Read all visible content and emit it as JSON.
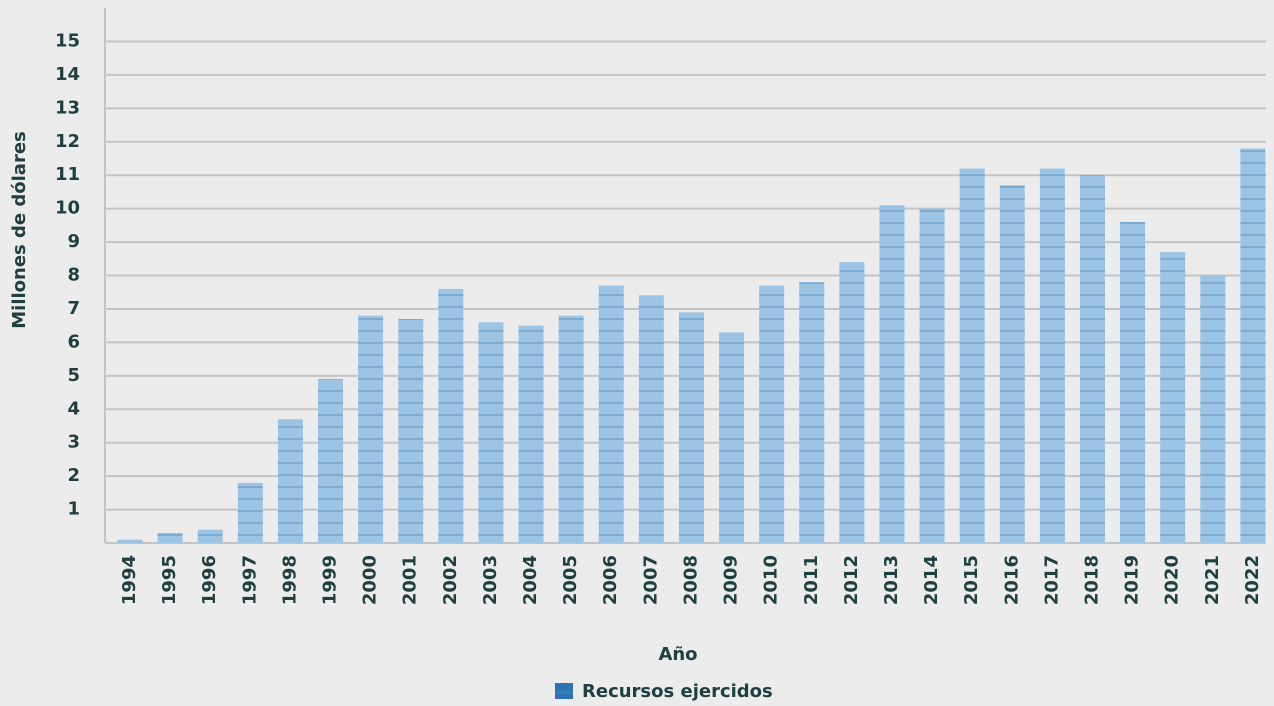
{
  "chart_data": {
    "type": "bar",
    "x_label": "Año",
    "y_label": "Millones de dólares",
    "categories": [
      "1994",
      "1995",
      "1996",
      "1997",
      "1998",
      "1999",
      "2000",
      "2001",
      "2002",
      "2003",
      "2004",
      "2005",
      "2006",
      "2007",
      "2008",
      "2009",
      "2010",
      "2011",
      "2012",
      "2013",
      "2014",
      "2015",
      "2016",
      "2017",
      "2018",
      "2019",
      "2020",
      "2021",
      "2022"
    ],
    "series": [
      {
        "name": "Recursos ejercidos",
        "color": "#2f7fc0",
        "values": [
          0.1,
          0.3,
          0.4,
          1.8,
          3.7,
          4.9,
          6.8,
          6.7,
          7.6,
          6.6,
          6.5,
          6.8,
          7.7,
          7.4,
          6.9,
          6.3,
          7.7,
          7.8,
          8.4,
          10.1,
          10.0,
          11.2,
          10.7,
          11.2,
          11.0,
          9.6,
          8.7,
          8.0,
          11.8
        ]
      }
    ],
    "ylim": [
      0,
      16
    ],
    "yticks": [
      1,
      2,
      3,
      4,
      5,
      6,
      7,
      8,
      9,
      10,
      11,
      12,
      13,
      14,
      15
    ],
    "grid": true,
    "legend": "bottom"
  }
}
